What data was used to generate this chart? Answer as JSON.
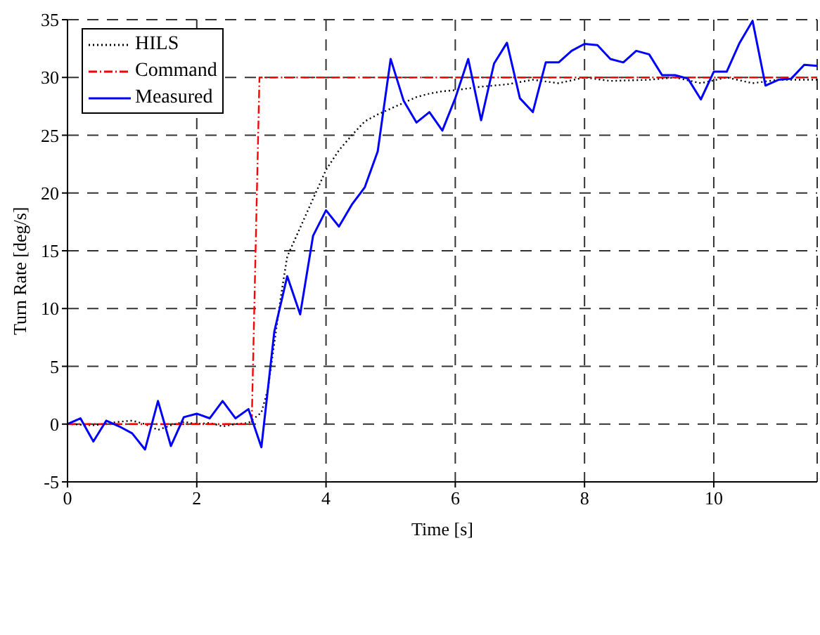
{
  "chart_data": {
    "type": "line",
    "xlabel": "Time [s]",
    "ylabel": "Turn Rate [deg/s]",
    "xlim": [
      0,
      11.6
    ],
    "xticks": [
      0,
      2,
      4,
      6,
      8,
      10
    ],
    "ylim": [
      -5,
      35
    ],
    "yticks": [
      -5,
      0,
      5,
      10,
      15,
      20,
      25,
      30,
      35
    ],
    "grid": true,
    "legend": "top left",
    "marker": "none",
    "series": [
      {
        "name": "HILS",
        "color": "#000000",
        "line_style": "dotted",
        "x": [
          0,
          0.4,
          0.8,
          1.0,
          1.2,
          1.4,
          1.6,
          1.8,
          2.0,
          2.2,
          2.4,
          2.6,
          2.8,
          3.0,
          3.1,
          3.2,
          3.3,
          3.4,
          3.6,
          3.8,
          4.0,
          4.2,
          4.4,
          4.6,
          4.8,
          5.0,
          5.2,
          5.4,
          5.6,
          5.8,
          6.0,
          6.4,
          6.8,
          7.2,
          7.6,
          8.0,
          8.4,
          9.0,
          9.4,
          9.8,
          10.2,
          10.6,
          11.0,
          11.6
        ],
        "values": [
          0,
          -0.1,
          0.2,
          0.3,
          0,
          -0.5,
          -0.1,
          0.2,
          0,
          0.1,
          -0.2,
          0,
          0.1,
          1,
          3,
          7,
          11,
          14.5,
          17,
          19.5,
          22,
          23.7,
          25,
          26.2,
          26.8,
          27.3,
          27.8,
          28.3,
          28.6,
          28.8,
          28.9,
          29.2,
          29.4,
          29.8,
          29.5,
          30,
          29.7,
          29.8,
          30,
          29.5,
          30,
          29.5,
          29.8,
          29.8
        ]
      },
      {
        "name": "Command",
        "color": "#ff0000",
        "line_style": "dashed",
        "x": [
          0,
          2.85,
          2.97,
          11.6
        ],
        "values": [
          0,
          0,
          30,
          30
        ]
      },
      {
        "name": "Measured",
        "color": "#0000ff",
        "line_style": "solid",
        "x": [
          0,
          0.2,
          0.4,
          0.6,
          0.8,
          1.0,
          1.2,
          1.4,
          1.6,
          1.8,
          2.0,
          2.2,
          2.4,
          2.6,
          2.8,
          3.0,
          3.2,
          3.4,
          3.6,
          3.8,
          4.0,
          4.2,
          4.4,
          4.6,
          4.8,
          5.0,
          5.2,
          5.4,
          5.6,
          5.8,
          6.0,
          6.2,
          6.4,
          6.6,
          6.8,
          7.0,
          7.2,
          7.4,
          7.6,
          7.8,
          8.0,
          8.2,
          8.4,
          8.6,
          8.8,
          9.0,
          9.2,
          9.4,
          9.6,
          9.8,
          10.0,
          10.2,
          10.4,
          10.6,
          10.8,
          11.0,
          11.2,
          11.4,
          11.6
        ],
        "values": [
          0,
          0.5,
          -1.5,
          0.3,
          -0.2,
          -0.8,
          -2.2,
          2,
          -1.9,
          0.6,
          0.9,
          0.5,
          2,
          0.5,
          1.3,
          -2,
          8,
          12.8,
          9.5,
          16.3,
          18.5,
          17.1,
          19,
          20.5,
          23.6,
          31.6,
          28,
          26.1,
          27,
          25.4,
          28.2,
          31.6,
          26.3,
          31.2,
          33,
          28.2,
          27,
          31.3,
          31.3,
          32.3,
          32.9,
          32.8,
          31.6,
          31.3,
          32.3,
          32,
          30.2,
          30.2,
          29.9,
          28.1,
          30.5,
          30.5,
          33,
          34.9,
          29.3,
          29.8,
          29.9,
          31.1,
          31
        ]
      }
    ]
  }
}
